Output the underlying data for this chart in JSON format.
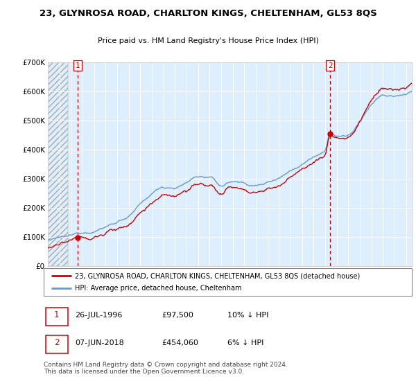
{
  "title": "23, GLYNROSA ROAD, CHARLTON KINGS, CHELTENHAM, GL53 8QS",
  "subtitle": "Price paid vs. HM Land Registry's House Price Index (HPI)",
  "sale1_date": "26-JUL-1996",
  "sale1_price": 97500,
  "sale1_year": 1996.57,
  "sale2_date": "07-JUN-2018",
  "sale2_price": 454060,
  "sale2_year": 2018.44,
  "legend_line1": "23, GLYNROSA ROAD, CHARLTON KINGS, CHELTENHAM, GL53 8QS (detached house)",
  "legend_line2": "HPI: Average price, detached house, Cheltenham",
  "footnote": "Contains HM Land Registry data © Crown copyright and database right 2024.\nThis data is licensed under the Open Government Licence v3.0.",
  "hpi_color": "#6699cc",
  "price_color": "#cc0000",
  "plot_bg_color": "#ddeeff",
  "ylim": [
    0,
    700000
  ],
  "yticks": [
    0,
    100000,
    200000,
    300000,
    400000,
    500000,
    600000,
    700000
  ],
  "ytick_labels": [
    "£0",
    "£100K",
    "£200K",
    "£300K",
    "£400K",
    "£500K",
    "£600K",
    "£700K"
  ],
  "start_year": 1994.0,
  "end_year": 2025.5
}
